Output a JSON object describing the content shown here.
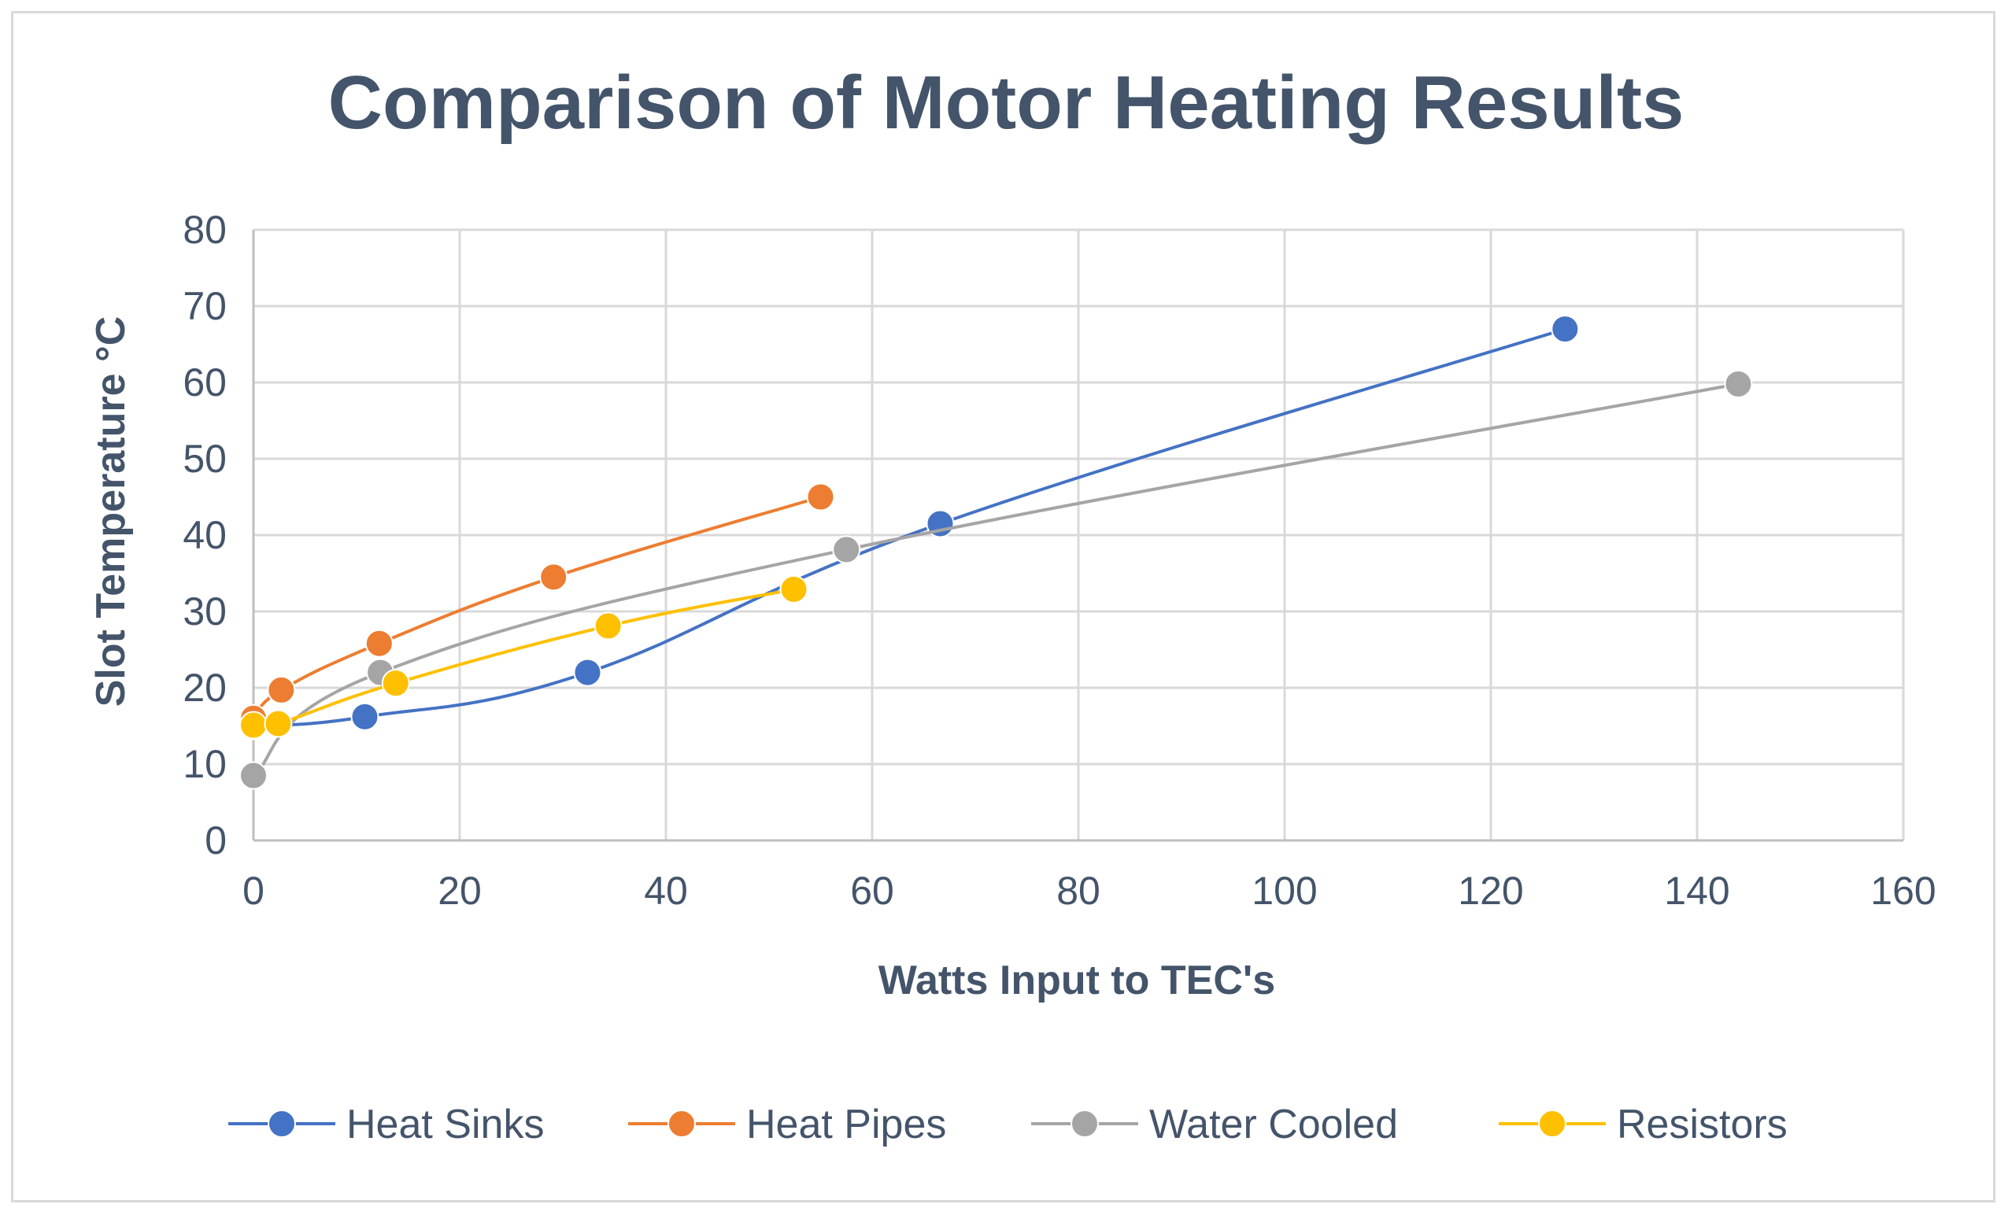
{
  "chart_data": {
    "type": "scatter",
    "title": "Comparison of Motor Heating Results",
    "xlabel": "Watts Input to TEC's",
    "ylabel": "Slot Temperature °C",
    "xlim": [
      0,
      160
    ],
    "ylim": [
      0,
      80
    ],
    "xticks": [
      0,
      20,
      40,
      60,
      80,
      100,
      120,
      140,
      160
    ],
    "yticks": [
      0,
      10,
      20,
      30,
      40,
      50,
      60,
      70,
      80
    ],
    "grid": true,
    "legend_position": "bottom",
    "series": [
      {
        "name": "Heat Sinks",
        "color": "#4472c4",
        "points": [
          [
            0,
            15
          ],
          [
            10.8,
            16.2
          ],
          [
            32.4,
            22
          ],
          [
            66.6,
            41.5
          ],
          [
            127.2,
            67
          ]
        ]
      },
      {
        "name": "Heat Pipes",
        "color": "#ed7d31",
        "points": [
          [
            0,
            16
          ],
          [
            2.7,
            19.7
          ],
          [
            12.2,
            25.8
          ],
          [
            29.1,
            34.5
          ],
          [
            55,
            45
          ]
        ]
      },
      {
        "name": "Water Cooled",
        "color": "#a5a5a5",
        "points": [
          [
            0,
            8.5
          ],
          [
            12.3,
            22
          ],
          [
            57.5,
            38.1
          ],
          [
            144,
            59.8
          ]
        ]
      },
      {
        "name": "Resistors",
        "color": "#ffc000",
        "points": [
          [
            0,
            15.1
          ],
          [
            2.4,
            15.3
          ],
          [
            13.8,
            20.6
          ],
          [
            34.4,
            28.1
          ],
          [
            52.4,
            32.9
          ]
        ]
      }
    ]
  }
}
